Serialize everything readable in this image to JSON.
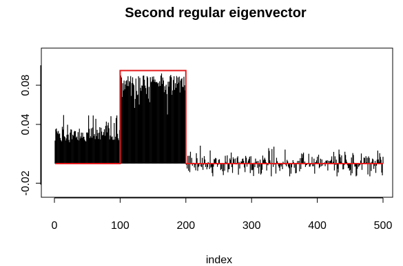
{
  "chart_data": {
    "type": "line",
    "title": "Second regular eigenvector",
    "xlabel": "index",
    "ylabel": "",
    "xlim": [
      0,
      500
    ],
    "ylim": [
      -0.02,
      0.09
    ],
    "x_ticks": [
      0,
      100,
      200,
      300,
      400,
      500
    ],
    "y_ticks": [
      -0.02,
      0.04,
      0.08
    ],
    "x_tick_labels": [
      "0",
      "100",
      "200",
      "300",
      "400",
      "500"
    ],
    "y_tick_labels": [
      "-0.02",
      "0.04",
      "0.08"
    ],
    "grid": false,
    "legend": "none",
    "series": [
      {
        "style": "vertical-lines (type='h') from 0",
        "color": "#000000",
        "segments": [
          {
            "x_start": 1,
            "x_end": 100,
            "value_min": 0.0,
            "value_max": 0.052,
            "typical": 0.025
          },
          {
            "x_start": 101,
            "x_end": 200,
            "value_min": 0.0,
            "value_max": 0.1,
            "typical": 0.09
          },
          {
            "x_start": 201,
            "x_end": 500,
            "value_min": -0.013,
            "value_max": 0.019,
            "typical": 0.0
          }
        ]
      },
      {
        "style": "step line",
        "color": "#e41a1c",
        "x": [
          1,
          100,
          100,
          200,
          200,
          500
        ],
        "values": [
          0.0,
          0.0,
          0.095,
          0.095,
          0.0,
          0.0
        ]
      }
    ]
  }
}
